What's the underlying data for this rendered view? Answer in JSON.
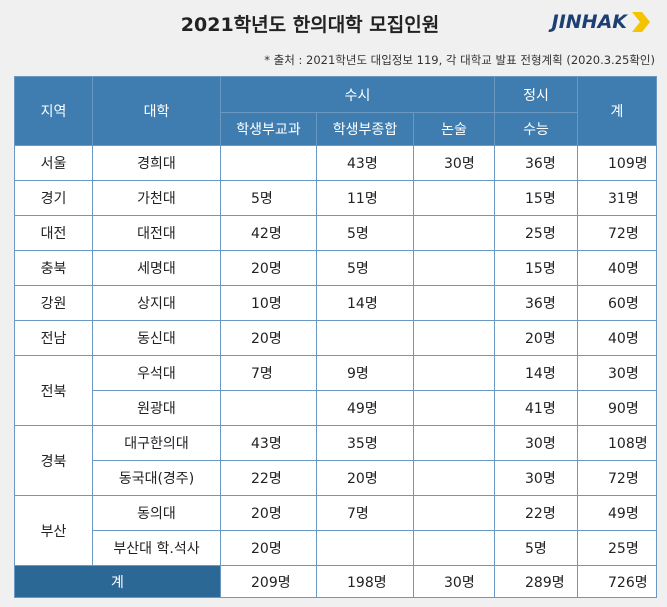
{
  "title": "2021학년도 한의대학 모집인원",
  "logo": "JINHAK",
  "source": "* 출처 : 2021학년도 대입정보 119, 각 대학교 발표 전형계획 (2020.3.25확인)",
  "table": {
    "header": {
      "region": "지역",
      "university": "대학",
      "susi": "수시",
      "jeongsi": "정시",
      "total": "계",
      "columns": [
        "학생부교과",
        "학생부종합",
        "논술",
        "수능"
      ]
    },
    "groups": [
      {
        "region": "서울",
        "rows": [
          [
            "경희대",
            null,
            "43명",
            "30명",
            "36명",
            "109명"
          ]
        ]
      },
      {
        "region": "경기",
        "rows": [
          [
            "가천대",
            "5명",
            "11명",
            null,
            "15명",
            "31명"
          ]
        ]
      },
      {
        "region": "대전",
        "rows": [
          [
            "대전대",
            "42명",
            "5명",
            null,
            "25명",
            "72명"
          ]
        ]
      },
      {
        "region": "충북",
        "rows": [
          [
            "세명대",
            "20명",
            "5명",
            null,
            "15명",
            "40명"
          ]
        ]
      },
      {
        "region": "강원",
        "rows": [
          [
            "상지대",
            "10명",
            "14명",
            null,
            "36명",
            "60명"
          ]
        ]
      },
      {
        "region": "전남",
        "rows": [
          [
            "동신대",
            "20명",
            null,
            null,
            "20명",
            "40명"
          ]
        ]
      },
      {
        "region": "전북",
        "rows": [
          [
            "우석대",
            "7명",
            "9명",
            null,
            "14명",
            "30명"
          ],
          [
            "원광대",
            null,
            "49명",
            null,
            "41명",
            "90명"
          ]
        ]
      },
      {
        "region": "경북",
        "rows": [
          [
            "대구한의대",
            "43명",
            "35명",
            null,
            "30명",
            "108명"
          ],
          [
            "동국대(경주)",
            "22명",
            "20명",
            null,
            "30명",
            "72명"
          ]
        ]
      },
      {
        "region": "부산",
        "rows": [
          [
            "동의대",
            "20명",
            "7명",
            null,
            "22명",
            "49명"
          ],
          [
            "부산대 학.석사",
            "20명",
            null,
            null,
            "5명",
            "25명"
          ]
        ]
      }
    ],
    "total": {
      "label": "계",
      "values": [
        "209명",
        "198명",
        "30명",
        "289명",
        "726명"
      ]
    }
  }
}
